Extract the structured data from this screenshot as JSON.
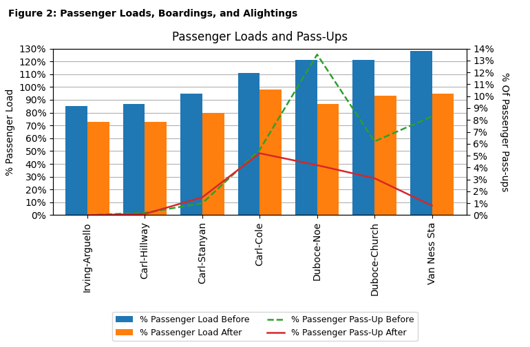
{
  "chart_data": {
    "type": "bar",
    "title": "Passenger Loads and Pass-Ups",
    "subtitle": "Figure 2: Passenger Loads, Boardings, and Alightings",
    "categories": [
      "Irving-Arguello",
      "Carl-Hillway",
      "Carl-Stanyan",
      "Carl-Cole",
      "Duboce-Noe",
      "Duboce-Church",
      "Van Ness Sta"
    ],
    "series": [
      {
        "name": "% Passenger Load Before",
        "type": "bar",
        "values": [
          0.85,
          0.87,
          0.95,
          1.11,
          1.21,
          1.21,
          1.28
        ]
      },
      {
        "name": "% Passenger Load After",
        "type": "bar",
        "values": [
          0.73,
          0.73,
          0.8,
          0.98,
          0.87,
          0.93,
          0.95
        ]
      },
      {
        "name": "% Passenger Pass-Up Before",
        "type": "line",
        "axis": "y2",
        "line_style": "dashed",
        "values": [
          0.0,
          0.002,
          0.01,
          0.055,
          0.135,
          0.062,
          0.083
        ]
      },
      {
        "name": "% Passenger Pass-Up After",
        "type": "line",
        "axis": "y2",
        "line_style": "solid",
        "values": [
          0.0,
          0.001,
          0.015,
          0.052,
          0.042,
          0.031,
          0.008
        ]
      }
    ],
    "y_label": "% Passenger Load",
    "y2_label": "% Of Passenger Pass-ups",
    "ylim": [
      0,
      1.3
    ],
    "yticks": [
      {
        "value": 0.0,
        "label": "0%"
      },
      {
        "value": 0.1,
        "label": "10%"
      },
      {
        "value": 0.2,
        "label": "20%"
      },
      {
        "value": 0.3,
        "label": "30%"
      },
      {
        "value": 0.4,
        "label": "40%"
      },
      {
        "value": 0.5,
        "label": "50%"
      },
      {
        "value": 0.6,
        "label": "60%"
      },
      {
        "value": 0.7,
        "label": "70%"
      },
      {
        "value": 0.8,
        "label": "80%"
      },
      {
        "value": 0.9,
        "label": "90%"
      },
      {
        "value": 1.0,
        "label": "100%"
      },
      {
        "value": 1.1,
        "label": "110%"
      },
      {
        "value": 1.2,
        "label": "120%"
      },
      {
        "value": 1.3,
        "label": "130%"
      }
    ],
    "y2lim": [
      0,
      0.14
    ],
    "y2ticks": [
      {
        "value": 0.0,
        "label": "0%"
      },
      {
        "value": 0.01,
        "label": "1%"
      },
      {
        "value": 0.02,
        "label": "2%"
      },
      {
        "value": 0.03,
        "label": "3%"
      },
      {
        "value": 0.04,
        "label": "4%"
      },
      {
        "value": 0.05,
        "label": "5%"
      },
      {
        "value": 0.06,
        "label": "6%"
      },
      {
        "value": 0.07,
        "label": "7%"
      },
      {
        "value": 0.08,
        "label": "8%"
      },
      {
        "value": 0.09,
        "label": "9%"
      },
      {
        "value": 0.1,
        "label": "10%"
      },
      {
        "value": 0.11,
        "label": "11%"
      },
      {
        "value": 0.12,
        "label": "12%"
      },
      {
        "value": 0.13,
        "label": "13%"
      },
      {
        "value": 0.14,
        "label": "14%"
      }
    ],
    "grid": true,
    "legend": "lower center"
  }
}
